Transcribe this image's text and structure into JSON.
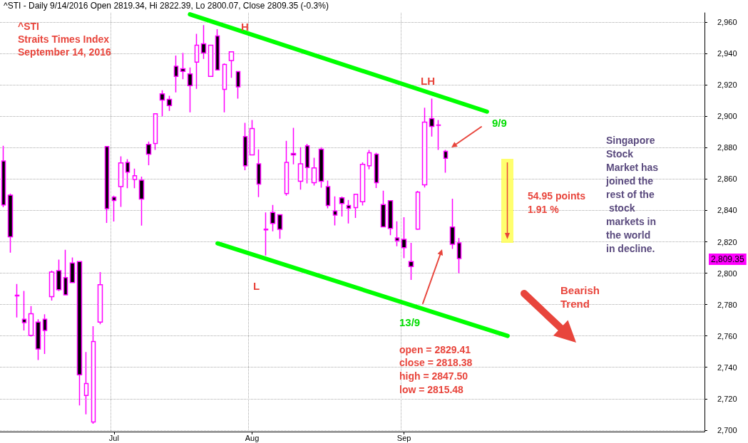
{
  "chart_data": {
    "type": "candlestick",
    "title": "^STI - Daily 9/14/2016 Open 2819.34, Hi 2822.39, Lo 2800.07, Close 2809.35 (-0.3%)",
    "categories": [
      null,
      null,
      null,
      null,
      null,
      null,
      null,
      null,
      null,
      null,
      null,
      null,
      null,
      null,
      null,
      null,
      "Jul",
      null,
      null,
      null,
      null,
      null,
      null,
      null,
      null,
      null,
      null,
      null,
      null,
      null,
      null,
      null,
      null,
      null,
      null,
      null,
      "Aug",
      null,
      null,
      null,
      null,
      null,
      null,
      null,
      null,
      null,
      null,
      null,
      null,
      null,
      null,
      null,
      null,
      null,
      null,
      null,
      null,
      null,
      "Sep",
      null,
      null,
      null,
      null,
      null,
      null,
      null,
      null,
      null,
      null,
      null,
      null,
      null,
      null,
      null,
      null,
      null,
      null,
      null,
      null,
      null,
      null,
      null,
      null,
      null,
      null,
      null,
      null,
      null,
      null,
      null,
      null,
      null,
      null,
      null,
      null,
      null,
      null,
      null,
      null,
      null,
      null,
      null
    ],
    "series": [
      {
        "type": "candlestick",
        "color": "#ff00ff",
        "ohlc": [
          [
            2871.5,
            2881.2,
            2842,
            2843.5
          ],
          [
            2849.7,
            2850.8,
            2813.1,
            2823.2
          ],
          [
            2786,
            2793.1,
            2771.8,
            2785.5
          ],
          [
            2770.6,
            2788.7,
            2763.5,
            2768.5
          ],
          [
            2760.3,
            2779,
            2759.6,
            2774.1
          ],
          [
            2768.8,
            2770.6,
            2744.6,
            2751.7
          ],
          [
            2770.6,
            2773.8,
            2748.5,
            2763.5
          ],
          [
            2785.1,
            2801.6,
            2782.6,
            2800.7
          ],
          [
            2801.6,
            2808.7,
            2788.6,
            2789.5
          ],
          [
            2797.2,
            2814.9,
            2786,
            2786.2
          ],
          [
            2806.5,
            2810,
            2793.8,
            2794
          ],
          [
            2807.4,
            2807.4,
            2715.7,
            2735.2
          ],
          [
            2722.1,
            2749.7,
            2710,
            2729.6
          ],
          [
            2705.1,
            2766.2,
            2704,
            2756.4
          ],
          [
            2768.8,
            2800.7,
            2767.5,
            2792.6
          ],
          [
            2880.7,
            2880.7,
            2832,
            2841.1
          ],
          [
            2848.5,
            2849.4,
            2832.9,
            2846.4
          ],
          [
            2855.2,
            2874.5,
            2842.3,
            2870.3
          ],
          [
            2870.6,
            2872.7,
            2854.2,
            2864.4
          ],
          [
            2859.8,
            2866.7,
            2854.2,
            2862.1
          ],
          [
            2859.3,
            2861.6,
            2830.3,
            2847.3
          ],
          [
            2882.1,
            2883.9,
            2868.8,
            2875.9
          ],
          [
            2882.7,
            2902,
            2878.6,
            2901.6
          ],
          [
            2914.3,
            2916.6,
            2900,
            2910.4
          ],
          [
            2910.8,
            2913.1,
            2903.4,
            2906.9
          ],
          [
            2932,
            2938.8,
            2915.2,
            2925.5
          ],
          [
            2930.3,
            2940.5,
            2923.7,
            2928.7
          ],
          [
            2927.1,
            2931.2,
            2902.5,
            2919.6
          ],
          [
            2934.5,
            2952.6,
            2917.5,
            2945.3
          ],
          [
            2946.2,
            2958.2,
            2936.6,
            2940.5
          ],
          [
            2925.5,
            2945.3,
            2925.5,
            2945.3
          ],
          [
            2951.2,
            2955.6,
            2929.6,
            2929.6
          ],
          [
            2917.2,
            2933.8,
            2902.5,
            2933.1
          ],
          [
            2935.6,
            2941.1,
            2924.6,
            2941.1
          ],
          [
            2928.5,
            2928.5,
            2911.3,
            2918.8
          ],
          [
            2887.1,
            2895.9,
            2865.7,
            2868.5
          ],
          [
            2875.4,
            2897.7,
            2875.4,
            2892.2
          ],
          [
            2869.7,
            2878.9,
            2848.5,
            2856.8
          ],
          [
            2828.1,
            2838.8,
            2811.3,
            2827.6
          ],
          [
            2838.8,
            2843.5,
            2826.7,
            2831.7
          ],
          [
            2837.3,
            2837.3,
            2821.9,
            2828
          ],
          [
            2850.8,
            2884.4,
            2849.4,
            2870.6
          ],
          [
            2876.3,
            2892.7,
            2869.4,
            2875.4
          ],
          [
            2858.6,
            2880.3,
            2853.3,
            2869.7
          ],
          [
            2881.2,
            2882.5,
            2857.3,
            2867.4
          ],
          [
            2857.7,
            2873.6,
            2855.9,
            2867.1
          ],
          [
            2879,
            2880.3,
            2854.5,
            2858.6
          ],
          [
            2855.2,
            2859.1,
            2841.4,
            2843.2
          ],
          [
            2839.6,
            2849,
            2830.4,
            2837
          ],
          [
            2848.1,
            2848.8,
            2836.1,
            2844.4
          ],
          [
            2843.2,
            2846.7,
            2831.7,
            2841.4
          ],
          [
            2841.8,
            2850.3,
            2835.2,
            2850.3
          ],
          [
            2845.5,
            2870.6,
            2843.2,
            2869.4
          ],
          [
            2868.5,
            2878.6,
            2866.2,
            2876.8
          ],
          [
            2875.9,
            2876.8,
            2854.3,
            2857.7
          ],
          [
            2843.7,
            2852.6,
            2829.6,
            2829.6
          ],
          [
            2846.2,
            2846.2,
            2824.2,
            2828.5
          ],
          [
            2822.5,
            2833.1,
            2817.2,
            2820.7
          ],
          [
            2821.6,
            2835.7,
            2809.6,
            2816.3
          ],
          [
            2807.4,
            2819.3,
            2795.7,
            2804.2
          ],
          [
            2828.1,
            2852.5,
            2827.6,
            2851.7
          ],
          [
            2856.3,
            2905.5,
            2854.6,
            2896.3
          ],
          [
            2898.6,
            2911.3,
            2887.1,
            2893.6
          ],
          [
            2894.5,
            2897.7,
            2878.6,
            2894.2
          ],
          [
            2877.7,
            2878.6,
            2864.1,
            2873.3
          ],
          [
            2829.41,
            2847.5,
            2815.48,
            2818.38
          ],
          [
            2819.34,
            2822.39,
            2800.07,
            2809.35
          ],
          null,
          null,
          null,
          null,
          null,
          null,
          null,
          null,
          null,
          null,
          null,
          null,
          null,
          null,
          null,
          null,
          null,
          null,
          null,
          null,
          null,
          null,
          null,
          null,
          null,
          null,
          null,
          null,
          null,
          null,
          null,
          null,
          null,
          null,
          null
        ]
      },
      {
        "type": "line",
        "color": "#00ff00",
        "values": [
          null,
          null,
          null,
          null,
          null,
          null,
          null,
          null,
          null,
          null,
          null,
          null,
          null,
          null,
          null,
          null,
          null,
          null,
          null,
          null,
          null,
          null,
          null,
          null,
          null,
          null,
          null,
          2965,
          null,
          null,
          null,
          null,
          null,
          null,
          null,
          null,
          null,
          null,
          null,
          null,
          null,
          null,
          null,
          null,
          null,
          null,
          null,
          null,
          null,
          null,
          null,
          null,
          null,
          null,
          null,
          null,
          null,
          null,
          null,
          null,
          null,
          null,
          null,
          null,
          null,
          null,
          null,
          null,
          null,
          null,
          2903,
          null,
          null,
          null,
          null,
          null,
          null,
          null,
          null,
          null,
          null,
          null,
          null,
          null,
          null,
          null,
          null,
          null,
          null,
          null,
          null,
          null,
          null,
          null,
          null,
          null,
          null,
          null,
          null,
          null,
          null,
          null
        ]
      },
      {
        "type": "line",
        "color": "#00ff00",
        "values": [
          null,
          null,
          null,
          null,
          null,
          null,
          null,
          null,
          null,
          null,
          null,
          null,
          null,
          null,
          null,
          null,
          null,
          null,
          null,
          null,
          null,
          null,
          null,
          null,
          null,
          null,
          null,
          null,
          null,
          null,
          null,
          2819,
          null,
          null,
          null,
          null,
          null,
          null,
          null,
          null,
          null,
          null,
          null,
          null,
          null,
          null,
          null,
          null,
          null,
          null,
          null,
          null,
          null,
          null,
          null,
          null,
          null,
          null,
          null,
          null,
          null,
          null,
          null,
          null,
          null,
          null,
          null,
          null,
          null,
          null,
          null,
          null,
          null,
          2760,
          null,
          null,
          null,
          null,
          null,
          null,
          null,
          null,
          null,
          null,
          null,
          null,
          null,
          null,
          null,
          null,
          null,
          null,
          null,
          null,
          null,
          null,
          null,
          null,
          null,
          null,
          null,
          null
        ]
      }
    ],
    "ylim": [
      2699,
      2966
    ],
    "yticks": [
      {
        "value": 2700,
        "label": "2,700"
      },
      {
        "value": 2720,
        "label": "2,720"
      },
      {
        "value": 2740,
        "label": "2,740"
      },
      {
        "value": 2760,
        "label": "2,760"
      },
      {
        "value": 2780,
        "label": "2,780"
      },
      {
        "value": 2800,
        "label": "2,800"
      },
      {
        "value": 2820,
        "label": "2,820"
      },
      {
        "value": 2840,
        "label": "2,840"
      },
      {
        "value": 2860,
        "label": "2,860"
      },
      {
        "value": 2880,
        "label": "2,880"
      },
      {
        "value": 2900,
        "label": "2,900"
      },
      {
        "value": 2920,
        "label": "2,920"
      },
      {
        "value": 2940,
        "label": "2,940"
      },
      {
        "value": 2960,
        "label": "2,960"
      }
    ],
    "grid": true,
    "annotations": [
      "^STI",
      "Straits Times Index",
      "September 14, 2016",
      "H",
      "L",
      "LH",
      "9/9",
      "13/9",
      "54.95 points",
      "1.91 %",
      "Singapore Stock Market has joined the rest of the stock markets in the world in decline.",
      "Bearish Trend",
      "open = 2829.41",
      "close = 2818.38",
      "high = 2847.50",
      "low = 2815.48",
      "2,809.35"
    ]
  }
}
